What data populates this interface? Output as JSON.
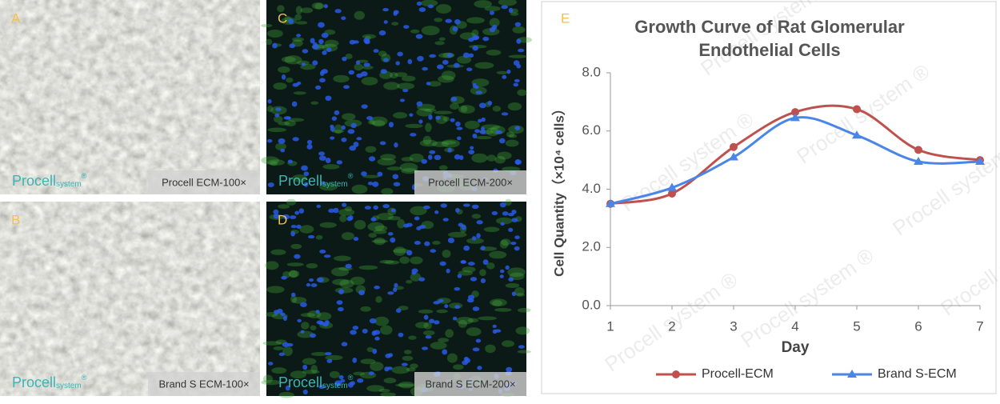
{
  "panels": [
    {
      "letter": "A",
      "brand": "Procell",
      "brand_sub": "system",
      "brand_mark": "®",
      "caption": "Procell  ECM-100×"
    },
    {
      "letter": "C",
      "brand": "Procell",
      "brand_sub": "system",
      "brand_mark": "®",
      "caption": "Procell  ECM-200×"
    },
    {
      "letter": "B",
      "brand": "Procell",
      "brand_sub": "system",
      "brand_mark": "®",
      "caption": "Brand S  ECM-100×"
    },
    {
      "letter": "D",
      "brand": "Procell",
      "brand_sub": "system",
      "brand_mark": "®",
      "caption": "Brand S  ECM-200×"
    }
  ],
  "chart_data": {
    "type": "line",
    "letter": "E",
    "title_lines": [
      "Growth Curve of Rat Glomerular",
      "Endothelial Cells"
    ],
    "watermark": "Procell system ®",
    "x_label": "Day",
    "y_label": "Cell Quantity（×10⁴ cells）",
    "x": [
      1,
      2,
      3,
      4,
      5,
      6,
      7
    ],
    "xlim": [
      1,
      7
    ],
    "xticks": [
      1,
      2,
      3,
      4,
      5,
      6,
      7
    ],
    "ylim": [
      0,
      8
    ],
    "yticks": [
      {
        "value": 0,
        "label": "0.0"
      },
      {
        "value": 2,
        "label": "2.0"
      },
      {
        "value": 4,
        "label": "4.0"
      },
      {
        "value": 6,
        "label": "6.0"
      },
      {
        "value": 8,
        "label": "8.0"
      }
    ],
    "series": [
      {
        "name": "Procell-ECM",
        "color": "#c0504d",
        "marker": "circle",
        "values": [
          3.5,
          3.85,
          5.45,
          6.65,
          6.75,
          5.35,
          5.0
        ]
      },
      {
        "name": "Brand S-ECM",
        "color": "#4a86e8",
        "marker": "triangle",
        "values": [
          3.5,
          4.05,
          5.1,
          6.45,
          5.85,
          4.95,
          4.95
        ]
      }
    ]
  }
}
